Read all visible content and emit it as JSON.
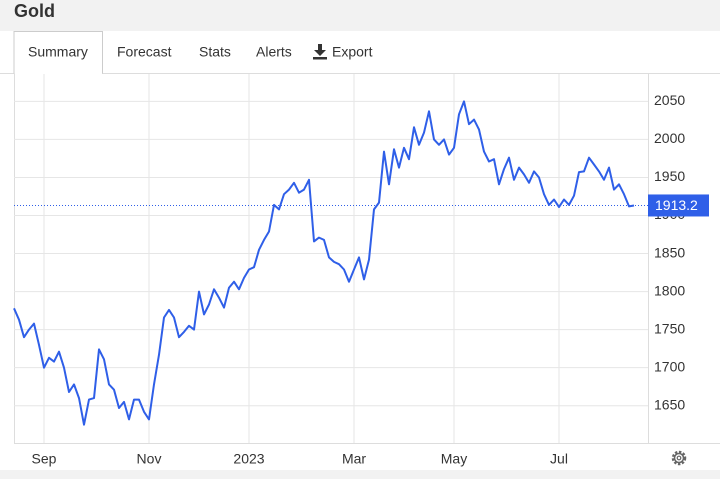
{
  "header": {
    "title": "Gold"
  },
  "tabs": [
    "Summary",
    "Forecast",
    "Stats",
    "Alerts",
    "Export"
  ],
  "chart_data": {
    "type": "line",
    "color": "#2f5fe8",
    "grid": true,
    "categories": [
      null,
      null,
      null,
      null,
      null,
      null,
      "Sep",
      null,
      null,
      null,
      null,
      null,
      null,
      null,
      null,
      null,
      null,
      null,
      null,
      null,
      null,
      null,
      null,
      null,
      null,
      null,
      null,
      "Nov",
      null,
      null,
      null,
      null,
      null,
      null,
      null,
      null,
      null,
      null,
      null,
      null,
      null,
      null,
      null,
      null,
      null,
      null,
      null,
      "2023",
      null,
      null,
      null,
      null,
      null,
      null,
      null,
      null,
      null,
      null,
      null,
      null,
      null,
      null,
      null,
      null,
      null,
      null,
      null,
      null,
      "Mar",
      null,
      null,
      null,
      null,
      null,
      null,
      null,
      null,
      null,
      null,
      null,
      null,
      null,
      null,
      null,
      null,
      null,
      null,
      null,
      "May",
      null,
      null,
      null,
      null,
      null,
      null,
      null,
      null,
      null,
      null,
      null,
      null,
      null,
      null,
      null,
      null,
      null,
      null,
      null,
      null,
      "Jul",
      null,
      null,
      null,
      null,
      null,
      null,
      null,
      null,
      null,
      null,
      null,
      null,
      null,
      null,
      null
    ],
    "values": [
      1778,
      1763,
      1740,
      1750,
      1758,
      1730,
      1700,
      1713,
      1708,
      1721,
      1700,
      1668,
      1678,
      1660,
      1625,
      1658,
      1660,
      1724,
      1711,
      1678,
      1671,
      1647,
      1655,
      1632,
      1658,
      1658,
      1642,
      1632,
      1678,
      1717,
      1766,
      1776,
      1766,
      1740,
      1747,
      1755,
      1750,
      1800,
      1770,
      1783,
      1803,
      1792,
      1779,
      1805,
      1813,
      1803,
      1818,
      1829,
      1832,
      1855,
      1868,
      1879,
      1914,
      1908,
      1928,
      1934,
      1943,
      1930,
      1934,
      1947,
      1866,
      1871,
      1868,
      1845,
      1839,
      1836,
      1829,
      1813,
      1829,
      1845,
      1816,
      1842,
      1908,
      1917,
      1984,
      1941,
      1987,
      1963,
      1989,
      1974,
      2016,
      1993,
      2009,
      2037,
      2000,
      1993,
      2000,
      1980,
      1989,
      2033,
      2050,
      2020,
      2026,
      2013,
      1984,
      1971,
      1974,
      1941,
      1961,
      1976,
      1947,
      1963,
      1954,
      1943,
      1958,
      1950,
      1928,
      1914,
      1921,
      1911,
      1921,
      1914,
      1926,
      1957,
      1958,
      1976,
      1967,
      1958,
      1947,
      1963,
      1934,
      1941,
      1928,
      1912,
      1913.2
    ],
    "ylim": [
      1601,
      2086
    ],
    "yticks": [
      1650,
      1700,
      1750,
      1800,
      1850,
      1900,
      1950,
      2000,
      2050
    ]
  }
}
